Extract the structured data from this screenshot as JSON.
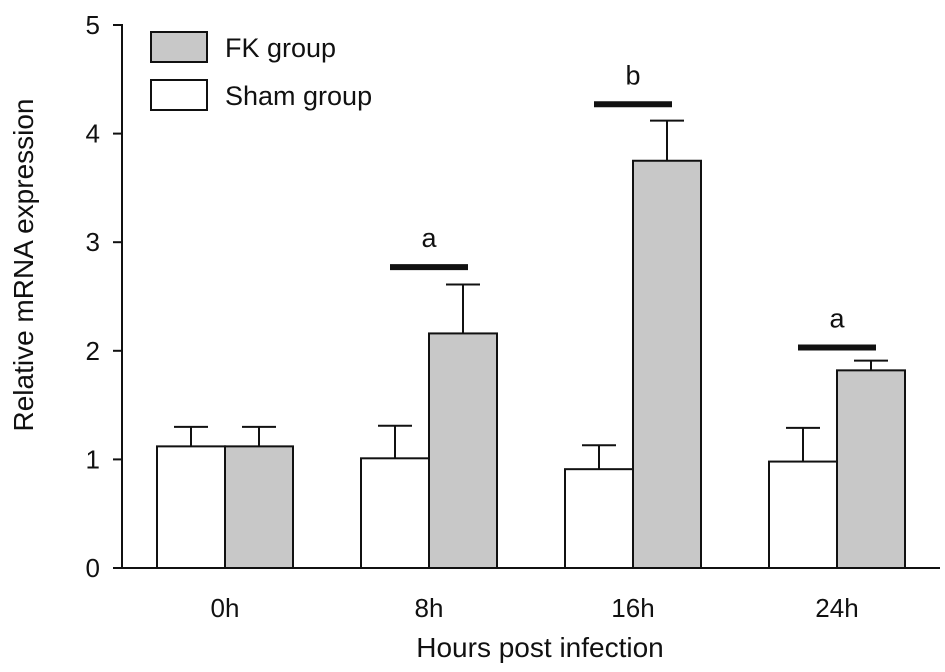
{
  "chart_data": {
    "type": "bar",
    "title": "",
    "xlabel": "Hours post infection",
    "ylabel": "Relative mRNA expression",
    "ylim": [
      0,
      5
    ],
    "yticks": [
      0,
      1,
      2,
      3,
      4,
      5
    ],
    "categories": [
      "0h",
      "8h",
      "16h",
      "24h"
    ],
    "series": [
      {
        "name": "Sham group",
        "color": "#ffffff",
        "values": [
          1.12,
          1.01,
          0.91,
          0.98
        ],
        "errors": [
          0.18,
          0.3,
          0.22,
          0.31
        ]
      },
      {
        "name": "FK group",
        "color": "#c8c8c8",
        "values": [
          1.12,
          2.16,
          3.75,
          1.82
        ],
        "errors": [
          0.18,
          0.45,
          0.37,
          0.09
        ]
      }
    ],
    "significance": [
      {
        "category": "8h",
        "label": "a",
        "level": 2.77
      },
      {
        "category": "16h",
        "label": "b",
        "level": 4.27
      },
      {
        "category": "24h",
        "label": "a",
        "level": 2.03
      }
    ],
    "legend": {
      "placement": "top-left",
      "order": [
        "FK group",
        "Sham group"
      ]
    },
    "grid": false
  }
}
